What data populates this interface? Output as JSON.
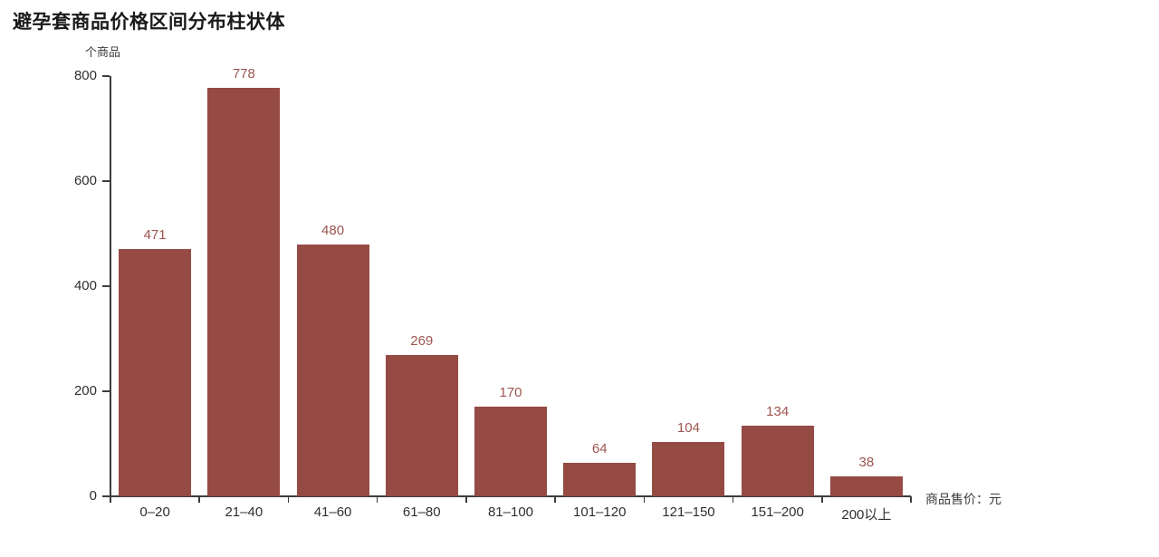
{
  "chart": {
    "title": "避孕套商品价格区间分布柱状体",
    "y_axis_unit": "个商品",
    "x_axis_unit": "商品售价：元"
  },
  "chart_data": {
    "type": "bar",
    "title": "避孕套商品价格区间分布柱状体",
    "categories": [
      "0–20",
      "21–40",
      "41–60",
      "61–80",
      "81–100",
      "101–120",
      "121–150",
      "151–200",
      "200以上"
    ],
    "values": [
      471,
      778,
      480,
      269,
      170,
      64,
      104,
      134,
      38
    ],
    "xlabel": "商品售价：元",
    "ylabel": "个商品",
    "ylim": [
      0,
      800
    ],
    "yticks": [
      0,
      200,
      400,
      600,
      800
    ],
    "grid": false,
    "legend_position": "none",
    "value_labels_shown": true,
    "bar_color": "#954a44",
    "value_label_color": "#9d554f",
    "axis_color": "#3c3c3c",
    "tick_text_color": "#2f2f2f",
    "title_color": "#1a1a1a"
  }
}
